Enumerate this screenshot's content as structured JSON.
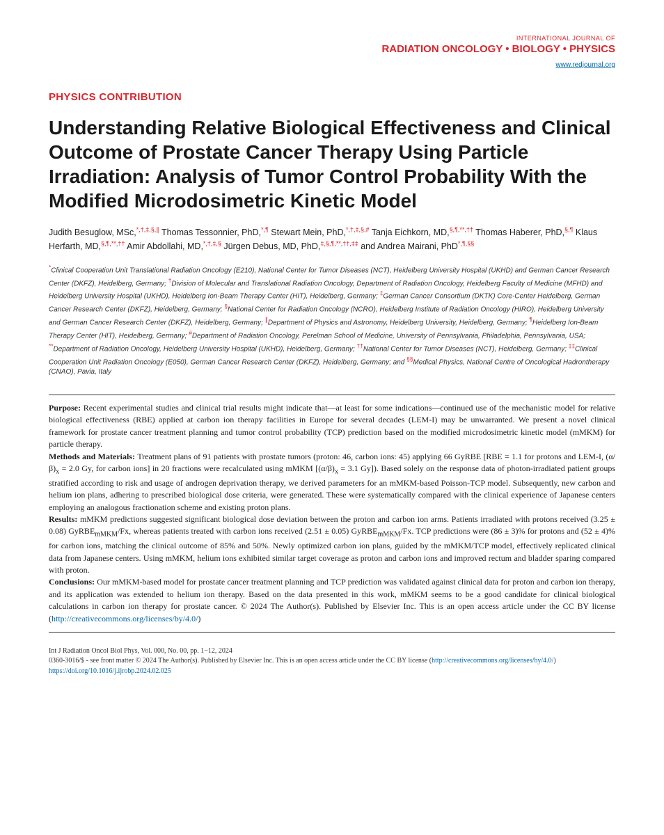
{
  "colors": {
    "brand_red": "#d7282f",
    "link_blue": "#0066a4",
    "text": "#222222",
    "background": "#ffffff"
  },
  "typography": {
    "title_fontsize": 28,
    "body_fontsize": 12,
    "body_family": "Georgia, serif",
    "heading_family": "Arial, sans-serif"
  },
  "header": {
    "pretitle": "INTERNATIONAL JOURNAL OF",
    "journal": "RADIATION ONCOLOGY • BIOLOGY • PHYSICS",
    "url": "www.redjournal.org"
  },
  "section_label": "PHYSICS CONTRIBUTION",
  "title": "Understanding Relative Biological Effectiveness and Clinical Outcome of Prostate Cancer Therapy Using Particle Irradiation: Analysis of Tumor Control Probability With the Modified Microdosimetric Kinetic Model",
  "authors_html": "Judith Besuglow, MSc,<sup>*,†,‡,§,∥</sup> Thomas Tessonnier, PhD,<sup>*,¶</sup> Stewart Mein, PhD,<sup>*,†,‡,§,#</sup> Tanja Eichkorn, MD,<sup>§,¶,**,††</sup> Thomas Haberer, PhD,<sup>§,¶</sup> Klaus Herfarth, MD,<sup>§,¶,**,††</sup> Amir Abdollahi, MD,<sup>*,†,‡,§</sup> Jürgen Debus, MD, PhD,<sup>‡,§,¶,**,††,‡‡</sup> and Andrea Mairani, PhD<sup>*,¶,§§</sup>",
  "affiliations_html": "<sup>*</sup>Clinical Cooperation Unit Translational Radiation Oncology (E210), National Center for Tumor Diseases (NCT), Heidelberg University Hospital (UKHD) and German Cancer Research Center (DKFZ), Heidelberg, Germany; <sup>†</sup>Division of Molecular and Translational Radiation Oncology, Department of Radiation Oncology, Heidelberg Faculty of Medicine (MFHD) and Heidelberg University Hospital (UKHD), Heidelberg Ion-Beam Therapy Center (HIT), Heidelberg, Germany; <sup>‡</sup>German Cancer Consortium (DKTK) Core-Center Heidelberg, German Cancer Research Center (DKFZ), Heidelberg, Germany; <sup>§</sup>National Center for Radiation Oncology (NCRO), Heidelberg Institute of Radiation Oncology (HIRO), Heidelberg University and German Cancer Research Center (DKFZ), Heidelberg, Germany; <sup>∥</sup>Department of Physics and Astronomy, Heidelberg University, Heidelberg, Germany; <sup>¶</sup>Heidelberg Ion-Beam Therapy Center (HIT), Heidelberg, Germany; <sup>#</sup>Department of Radiation Oncology, Perelman School of Medicine, University of Pennsylvania, Philadelphia, Pennsylvania, USA; <sup>**</sup>Department of Radiation Oncology, Heidelberg University Hospital (UKHD), Heidelberg, Germany; <sup>††</sup>National Center for Tumor Diseases (NCT), Heidelberg, Germany; <sup>‡‡</sup>Clinical Cooperation Unit Radiation Oncology (E050), German Cancer Research Center (DKFZ), Heidelberg, Germany; and <sup>§§</sup>Medical Physics, National Centre of Oncological Hadrontherapy (CNAO), Pavia, Italy",
  "abstract": {
    "purpose": "Recent experimental studies and clinical trial results might indicate that—at least for some indications—continued use of the mechanistic model for relative biological effectiveness (RBE) applied at carbon ion therapy facilities in Europe for several decades (LEM-I) may be unwarranted. We present a novel clinical framework for prostate cancer treatment planning and tumor control probability (TCP) prediction based on the modified microdosimetric kinetic model (mMKM) for particle therapy.",
    "methods_html": "Treatment plans of 91 patients with prostate tumors (proton: 46, carbon ions: 45) applying 66 GyRBE [RBE = 1.1 for protons and LEM-I, (α/β)<sub>x</sub> = 2.0 Gy, for carbon ions] in 20 fractions were recalculated using mMKM [(α/β)<sub>x</sub> = 3.1 Gy]). Based solely on the response data of photon-irradiated patient groups stratified according to risk and usage of androgen deprivation therapy, we derived parameters for an mMKM-based Poisson-TCP model. Subsequently, new carbon and helium ion plans, adhering to prescribed biological dose criteria, were generated. These were systematically compared with the clinical experience of Japanese centers employing an analogous fractionation scheme and existing proton plans.",
    "results_html": "mMKM predictions suggested significant biological dose deviation between the proton and carbon ion arms. Patients irradiated with protons received (3.25 ± 0.08) GyRBE<sub>mMKM</sub>/Fx, whereas patients treated with carbon ions received (2.51 ± 0.05) GyRBE<sub>mMKM</sub>/Fx. TCP predictions were (86 ± 3)% for protons and (52 ± 4)% for carbon ions, matching the clinical outcome of 85% and 50%. Newly optimized carbon ion plans, guided by the mMKM/TCP model, effectively replicated clinical data from Japanese centers. Using mMKM, helium ions exhibited similar target coverage as proton and carbon ions and improved rectum and bladder sparing compared with proton.",
    "conclusions_html": "Our mMKM-based model for prostate cancer treatment planning and TCP prediction was validated against clinical data for proton and carbon ion therapy, and its application was extended to helium ion therapy. Based on the data presented in this work, mMKM seems to be a good candidate for clinical biological calculations in carbon ion therapy for prostate cancer. © 2024 The Author(s). Published by Elsevier Inc. This is an open access article under the CC BY license (<a href=\"#\" data-name=\"cc-license-link\" data-interactable=\"true\">http://creativecommons.org/licenses/by/4.0/</a>)"
  },
  "footer": {
    "citation": "Int J Radiation Oncol Biol Phys, Vol. 000, No. 00, pp. 1−12, 2024",
    "copyright_html": "0360-3016/$ - see front matter © 2024 The Author(s). Published by Elsevier Inc. This is an open access article under the CC BY license (<a href=\"#\" data-name=\"footer-license-link\" data-interactable=\"true\">http://creativecommons.org/licenses/by/4.0/</a>)",
    "doi_html": "<a href=\"#\" data-name=\"doi-link\" data-interactable=\"true\">https://doi.org/10.1016/j.ijrobp.2024.02.025</a>"
  }
}
